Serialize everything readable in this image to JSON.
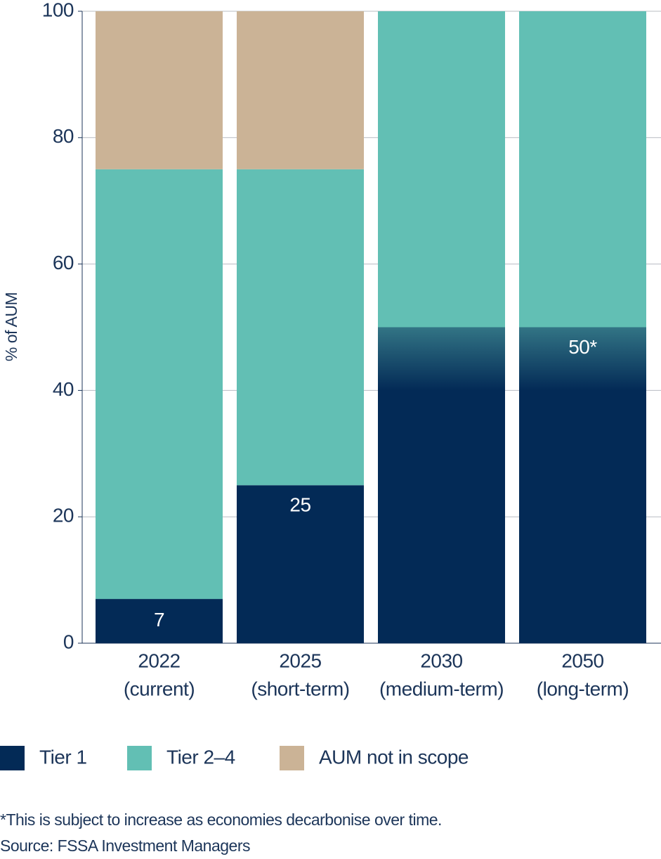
{
  "chart_data": {
    "type": "stacked-bar",
    "y_axis_label": "% of AUM",
    "categories": [
      [
        "2022",
        "(current)"
      ],
      [
        "2025",
        "(short-term)"
      ],
      [
        "2030",
        "(medium-term)"
      ],
      [
        "2050",
        "(long-term)"
      ]
    ],
    "series": [
      {
        "name": "Tier 1",
        "color": "#032a56",
        "values": [
          7,
          25,
          50,
          50
        ],
        "value_labels": [
          "7",
          "25",
          null,
          "50*"
        ]
      },
      {
        "name": "Tier 2–4",
        "color": "#62bfb4",
        "values": [
          68,
          50,
          50,
          50
        ]
      },
      {
        "name": "AUM not in scope",
        "color": "#cbb396",
        "values": [
          25,
          25,
          0,
          0
        ]
      }
    ],
    "gradient_bars": [
      false,
      false,
      true,
      true
    ],
    "ylim": [
      0,
      100
    ],
    "yticks": [
      0,
      20,
      40,
      60,
      80,
      100
    ],
    "grid": true,
    "footnotes": [
      "*This is subject to increase as economies decarbonise over time.",
      "Source: FSSA Investment Managers"
    ]
  }
}
